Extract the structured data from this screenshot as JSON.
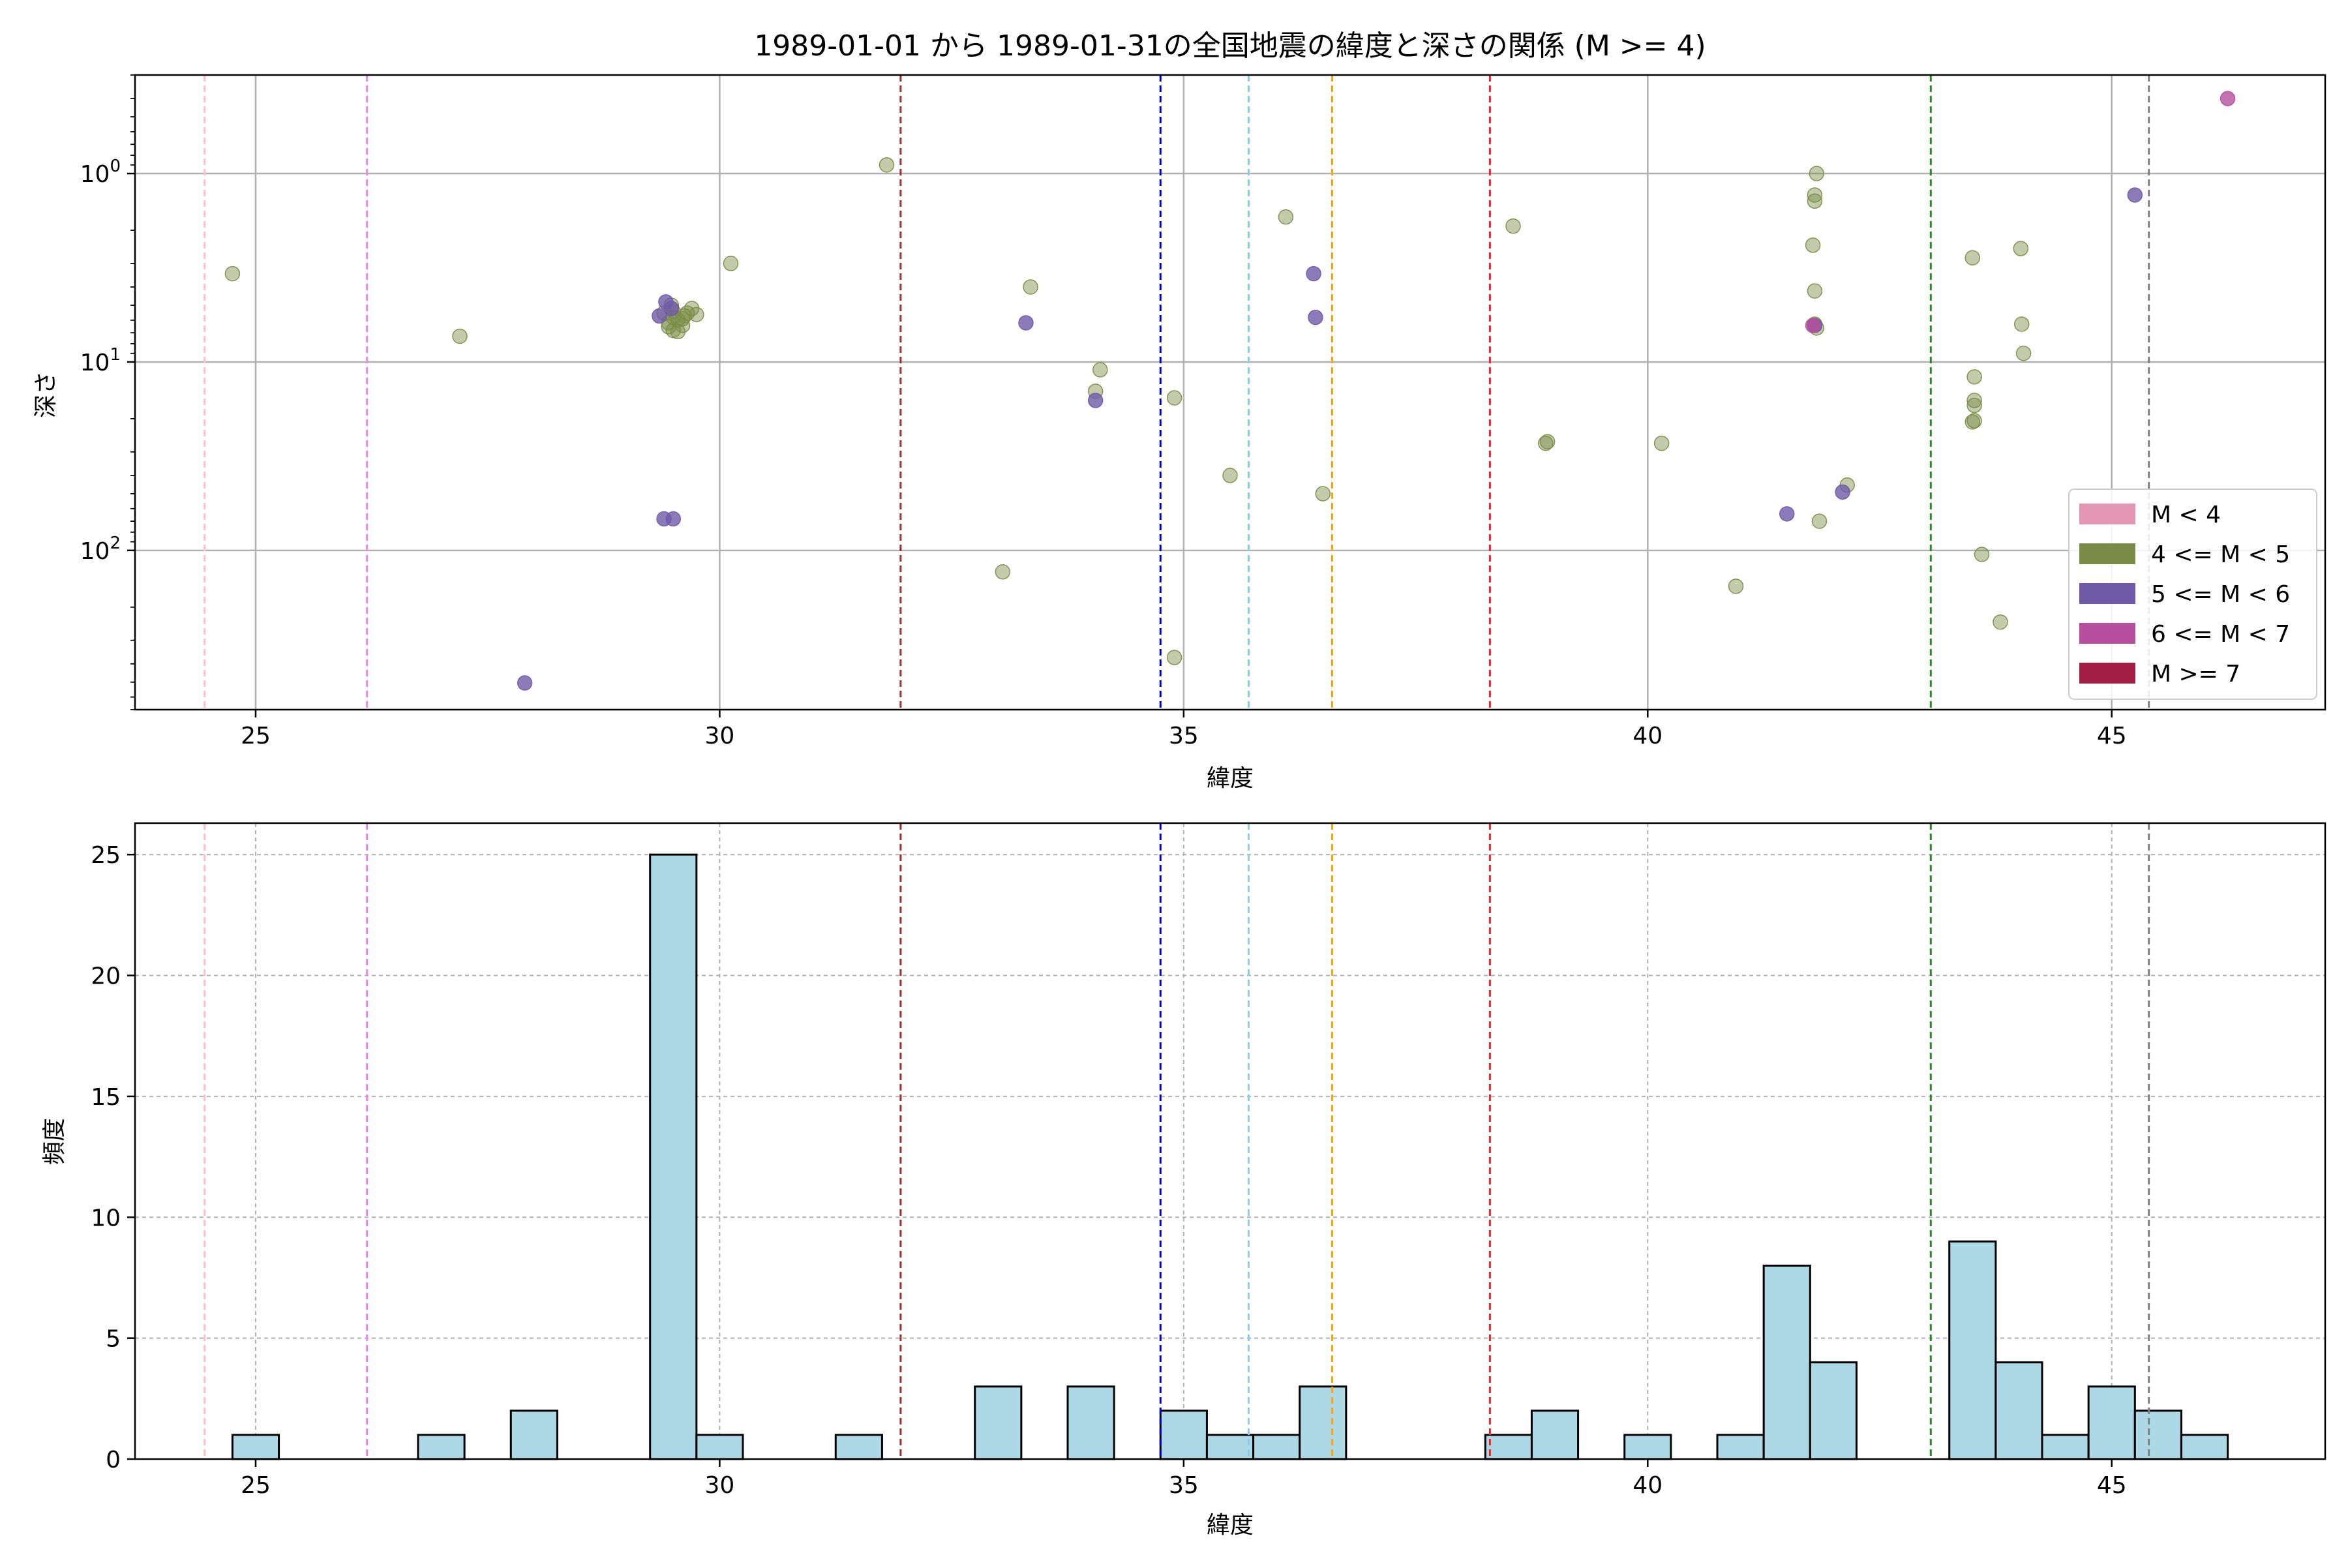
{
  "chart_data": [
    {
      "type": "scatter",
      "title": "1989-01-01 から 1989-01-31の全国地震の緯度と深さの関係 (M >= 4)",
      "xlabel": "緯度",
      "ylabel": "深さ",
      "xlim": [
        23.7,
        47.3
      ],
      "ylim": [
        700,
        0.3
      ],
      "y_scale": "log",
      "y_inverted": true,
      "grid": true,
      "legend_position": "lower-right",
      "x_ticks": [
        25,
        30,
        35,
        40,
        45
      ],
      "y_ticks": [
        1,
        10,
        100
      ],
      "y_tick_labels": [
        "10^0",
        "10^1",
        "10^2"
      ],
      "vertical_lines": [
        {
          "x": 24.45,
          "color": "#ffc0cb"
        },
        {
          "x": 26.2,
          "color": "#ee82ee"
        },
        {
          "x": 31.95,
          "color": "#a52a2a"
        },
        {
          "x": 34.75,
          "color": "#0000cd"
        },
        {
          "x": 35.7,
          "color": "#87ceeb"
        },
        {
          "x": 36.6,
          "color": "#ffa500"
        },
        {
          "x": 38.3,
          "color": "#ff2020"
        },
        {
          "x": 43.05,
          "color": "#228b22"
        },
        {
          "x": 45.4,
          "color": "#808080"
        }
      ],
      "legend": [
        {
          "label": "M < 4",
          "color": "#e497b5"
        },
        {
          "label": "4 <= M < 5",
          "color": "#7a8c45"
        },
        {
          "label": "5 <= M < 6",
          "color": "#6f5aa8"
        },
        {
          "label": "6 <= M < 7",
          "color": "#b64f9e"
        },
        {
          "label": "M >= 7",
          "color": "#a31f45"
        }
      ],
      "series": [
        {
          "name": "4 <= M < 5",
          "color": "#7a8c45",
          "points": [
            [
              24.75,
              3.4
            ],
            [
              27.2,
              7.3
            ],
            [
              29.4,
              5.5
            ],
            [
              29.45,
              6.5
            ],
            [
              29.5,
              5.8
            ],
            [
              29.5,
              6.8
            ],
            [
              29.55,
              6.0
            ],
            [
              29.6,
              6.4
            ],
            [
              29.65,
              5.5
            ],
            [
              29.7,
              5.2
            ],
            [
              29.75,
              5.6
            ],
            [
              29.45,
              6.2
            ],
            [
              29.5,
              5.4
            ],
            [
              29.55,
              6.9
            ],
            [
              29.6,
              5.9
            ],
            [
              29.48,
              5.0
            ],
            [
              29.62,
              5.7
            ],
            [
              30.12,
              3.0
            ],
            [
              31.8,
              0.9
            ],
            [
              33.05,
              130
            ],
            [
              33.35,
              4.0
            ],
            [
              34.05,
              14.3
            ],
            [
              34.1,
              11.0
            ],
            [
              34.9,
              15.5
            ],
            [
              34.9,
              370
            ],
            [
              35.5,
              40
            ],
            [
              36.1,
              1.7
            ],
            [
              36.5,
              50
            ],
            [
              38.55,
              1.9
            ],
            [
              38.9,
              27
            ],
            [
              38.92,
              26.5
            ],
            [
              40.15,
              27
            ],
            [
              40.95,
              155
            ],
            [
              41.8,
              1.3
            ],
            [
              41.8,
              1.4
            ],
            [
              41.82,
              1.0
            ],
            [
              41.78,
              2.4
            ],
            [
              41.8,
              4.2
            ],
            [
              41.8,
              6.3
            ],
            [
              41.82,
              6.6
            ],
            [
              41.85,
              70
            ],
            [
              42.15,
              45
            ],
            [
              43.5,
              2.8
            ],
            [
              43.52,
              12.0
            ],
            [
              43.52,
              16.0
            ],
            [
              43.52,
              17.0
            ],
            [
              43.5,
              20.8
            ],
            [
              43.52,
              20.5
            ],
            [
              43.6,
              105
            ],
            [
              43.8,
              240
            ],
            [
              44.02,
              2.5
            ],
            [
              44.03,
              6.3
            ],
            [
              44.05,
              9.0
            ]
          ]
        },
        {
          "name": "5 <= M < 6",
          "color": "#6f5aa8",
          "points": [
            [
              27.9,
              505
            ],
            [
              29.35,
              5.7
            ],
            [
              29.42,
              4.8
            ],
            [
              29.48,
              5.2
            ],
            [
              29.4,
              68
            ],
            [
              29.5,
              68
            ],
            [
              33.3,
              6.2
            ],
            [
              34.05,
              16.0
            ],
            [
              36.4,
              3.4
            ],
            [
              36.42,
              5.8
            ],
            [
              41.5,
              64
            ],
            [
              41.8,
              6.4
            ],
            [
              42.1,
              49
            ],
            [
              45.25,
              1.3
            ]
          ]
        },
        {
          "name": "6 <= M < 7",
          "color": "#b64f9e",
          "points": [
            [
              46.25,
              0.4
            ],
            [
              41.78,
              6.4
            ]
          ]
        }
      ]
    },
    {
      "type": "bar",
      "title": "",
      "xlabel": "緯度",
      "ylabel": "頻度",
      "xlim": [
        23.7,
        47.3
      ],
      "ylim": [
        0,
        26.3
      ],
      "grid": true,
      "x_ticks": [
        25,
        30,
        35,
        40,
        45
      ],
      "y_ticks": [
        0,
        5,
        10,
        15,
        20,
        25
      ],
      "bin_width": 0.5,
      "bins": [
        {
          "start": 24.75,
          "count": 1
        },
        {
          "start": 26.75,
          "count": 1
        },
        {
          "start": 27.75,
          "count": 2
        },
        {
          "start": 29.25,
          "count": 25
        },
        {
          "start": 29.75,
          "count": 1
        },
        {
          "start": 31.25,
          "count": 1
        },
        {
          "start": 32.75,
          "count": 3
        },
        {
          "start": 33.75,
          "count": 3
        },
        {
          "start": 34.75,
          "count": 2
        },
        {
          "start": 35.25,
          "count": 1
        },
        {
          "start": 35.75,
          "count": 1
        },
        {
          "start": 36.25,
          "count": 3
        },
        {
          "start": 38.25,
          "count": 1
        },
        {
          "start": 38.75,
          "count": 2
        },
        {
          "start": 39.75,
          "count": 1
        },
        {
          "start": 40.75,
          "count": 1
        },
        {
          "start": 41.25,
          "count": 8
        },
        {
          "start": 41.75,
          "count": 4
        },
        {
          "start": 43.25,
          "count": 9
        },
        {
          "start": 43.75,
          "count": 4
        },
        {
          "start": 44.25,
          "count": 1
        },
        {
          "start": 44.75,
          "count": 3
        },
        {
          "start": 45.25,
          "count": 2
        },
        {
          "start": 45.75,
          "count": 1
        }
      ],
      "bar_color": "#add8e6",
      "vertical_lines": [
        {
          "x": 24.45,
          "color": "#ffc0cb"
        },
        {
          "x": 26.2,
          "color": "#ee82ee"
        },
        {
          "x": 31.95,
          "color": "#a52a2a"
        },
        {
          "x": 34.75,
          "color": "#0000cd"
        },
        {
          "x": 35.7,
          "color": "#87ceeb"
        },
        {
          "x": 36.6,
          "color": "#ffa500"
        },
        {
          "x": 38.3,
          "color": "#ff2020"
        },
        {
          "x": 43.05,
          "color": "#228b22"
        },
        {
          "x": 45.4,
          "color": "#808080"
        }
      ]
    }
  ]
}
